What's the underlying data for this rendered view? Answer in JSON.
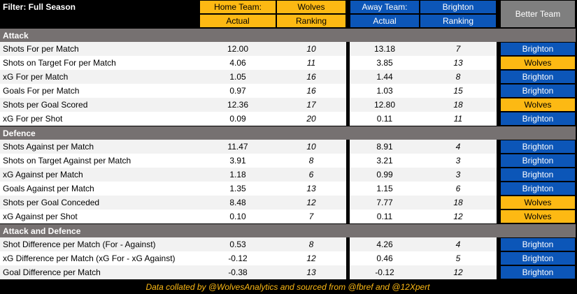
{
  "header": {
    "filter": "Filter: Full Season",
    "home_label": "Home Team:",
    "home_team": "Wolves",
    "away_label": "Away Team:",
    "away_team": "Brighton",
    "better_team": "Better Team",
    "columns": [
      "Actual",
      "Ranking",
      "Actual",
      "Ranking"
    ]
  },
  "sections": [
    {
      "title": "Attack",
      "rows": [
        [
          "Shots For per Match",
          "12.00",
          "10",
          "13.18",
          "7",
          "Brighton"
        ],
        [
          "Shots on Target For per Match",
          "4.06",
          "11",
          "3.85",
          "13",
          "Wolves"
        ],
        [
          "xG For per Match",
          "1.05",
          "16",
          "1.44",
          "8",
          "Brighton"
        ],
        [
          "Goals For per Match",
          "0.97",
          "16",
          "1.03",
          "15",
          "Brighton"
        ],
        [
          "Shots per Goal Scored",
          "12.36",
          "17",
          "12.80",
          "18",
          "Wolves"
        ],
        [
          "xG For per Shot",
          "0.09",
          "20",
          "0.11",
          "11",
          "Brighton"
        ]
      ]
    },
    {
      "title": "Defence",
      "rows": [
        [
          "Shots Against per Match",
          "11.47",
          "10",
          "8.91",
          "4",
          "Brighton"
        ],
        [
          "Shots on Target Against per Match",
          "3.91",
          "8",
          "3.21",
          "3",
          "Brighton"
        ],
        [
          "xG Against per Match",
          "1.18",
          "6",
          "0.99",
          "3",
          "Brighton"
        ],
        [
          "Goals Against per Match",
          "1.35",
          "13",
          "1.15",
          "6",
          "Brighton"
        ],
        [
          "Shots per Goal Conceded",
          "8.48",
          "12",
          "7.77",
          "18",
          "Wolves"
        ],
        [
          "xG Against per Shot",
          "0.10",
          "7",
          "0.11",
          "12",
          "Wolves"
        ]
      ]
    },
    {
      "title": "Attack and Defence",
      "rows": [
        [
          "Shot Difference per Match (For - Against)",
          "0.53",
          "8",
          "4.26",
          "4",
          "Brighton"
        ],
        [
          "xG Difference per Match (xG For - xG Against)",
          "-0.12",
          "12",
          "0.46",
          "5",
          "Brighton"
        ],
        [
          "Goal Difference per Match",
          "-0.38",
          "13",
          "-0.12",
          "12",
          "Brighton"
        ]
      ]
    }
  ],
  "footer": "Data collated by @WolvesAnalytics and sourced from @fbref and @12Xpert"
}
